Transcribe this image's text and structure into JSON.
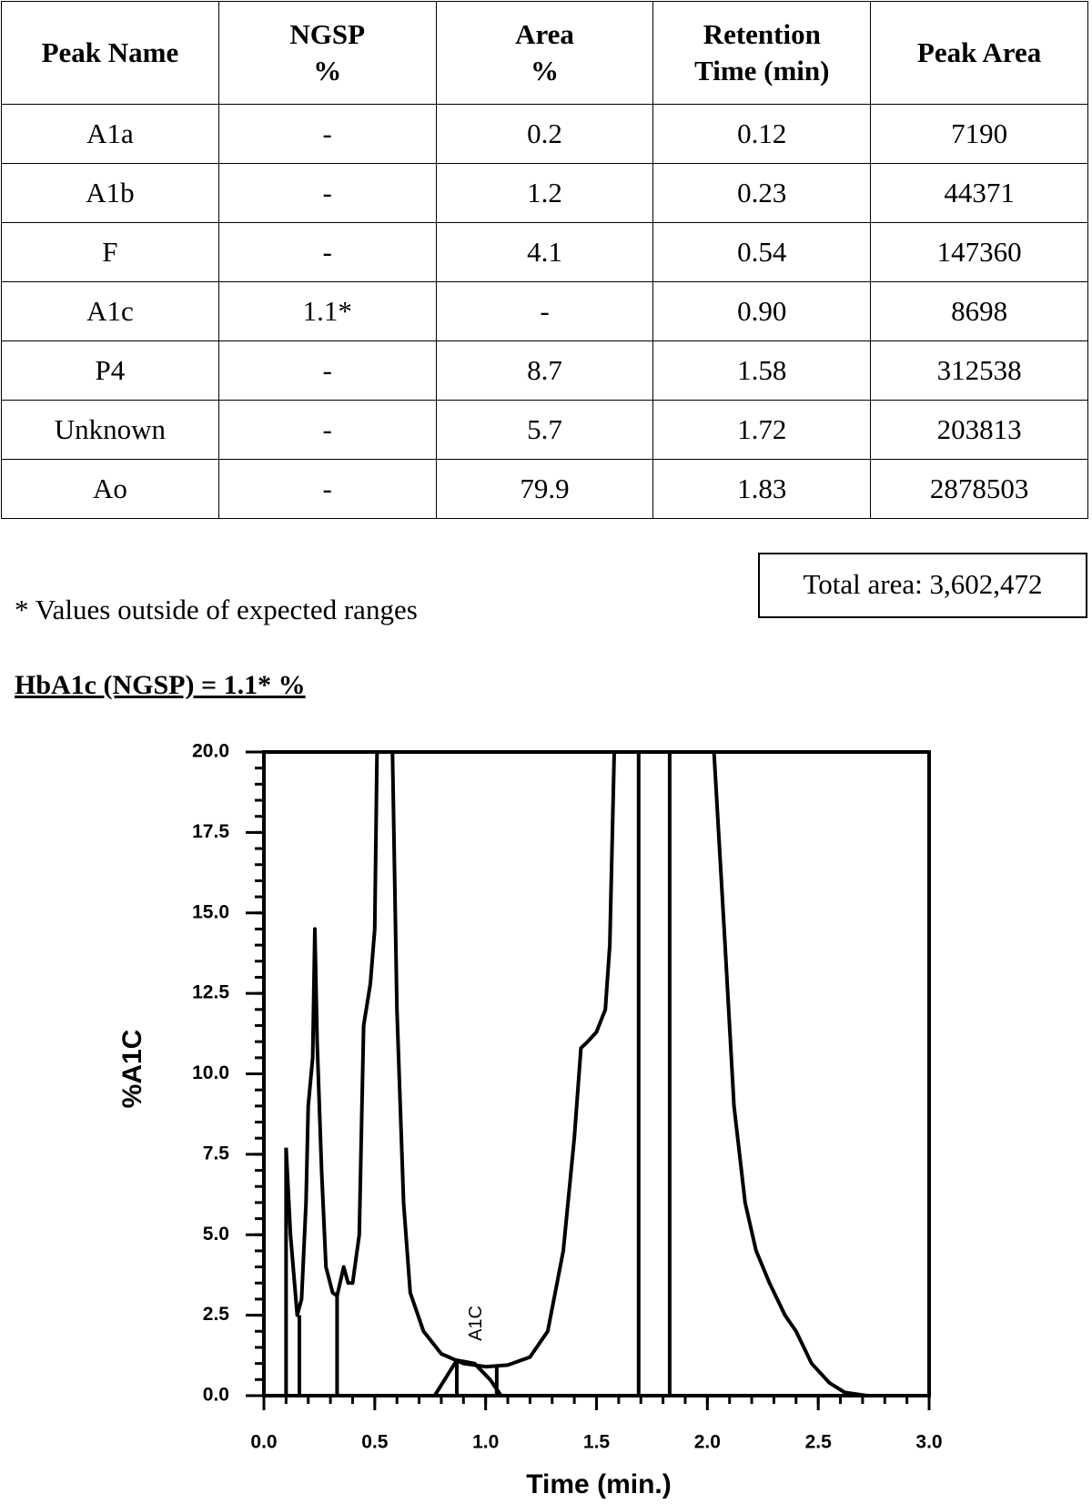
{
  "table": {
    "header": [
      "Peak Name",
      "NGSP\n%",
      "Area\n%",
      "Retention\nTime (min)",
      "Peak Area"
    ],
    "rows": [
      [
        "A1a",
        "-",
        "0.2",
        "0.12",
        "7190"
      ],
      [
        "A1b",
        "-",
        "1.2",
        "0.23",
        "44371"
      ],
      [
        "F",
        "-",
        "4.1",
        "0.54",
        "147360"
      ],
      [
        "A1c",
        "1.1*",
        "-",
        "0.90",
        "8698"
      ],
      [
        "P4",
        "-",
        "8.7",
        "1.58",
        "312538"
      ],
      [
        "Unknown",
        "-",
        "5.7",
        "1.72",
        "203813"
      ],
      [
        "Ao",
        "-",
        "79.9",
        "1.83",
        "2878503"
      ]
    ]
  },
  "total_area": "Total area: 3,602,472",
  "footnote": "* Values outside of expected ranges",
  "result": "HbA1c (NGSP) = 1.1* %",
  "chart_data": {
    "type": "line",
    "xlabel": "Time (min.)",
    "ylabel": "%A1C",
    "xlim": [
      0,
      3
    ],
    "ylim": [
      0,
      20
    ],
    "xticks": [
      {
        "value": 0,
        "label": "0.0"
      },
      0.5,
      {
        "value": 1,
        "label": "1.0"
      },
      1.5,
      {
        "value": 2,
        "label": "2.0"
      },
      2.5,
      {
        "value": 3,
        "label": "3.0"
      }
    ],
    "yticks": [
      {
        "value": 0,
        "label": "0.0"
      },
      2.5,
      {
        "value": 5,
        "label": "5.0"
      },
      7.5,
      {
        "value": 10,
        "label": "10.0"
      },
      12.5,
      {
        "value": 15,
        "label": "15.0"
      },
      17.5,
      {
        "value": 20,
        "label": "20.0"
      }
    ],
    "color": "#000000",
    "series": [
      {
        "x": [
          0.1,
          0.12,
          0.15,
          0.17,
          0.19,
          0.2,
          0.22,
          0.23,
          0.24,
          0.26,
          0.28,
          0.31,
          0.33,
          0.36,
          0.38,
          0.4,
          0.43,
          0.45,
          0.48,
          0.5,
          0.51,
          0.545,
          0.58,
          0.6,
          0.63,
          0.66,
          0.72,
          0.8,
          0.9,
          1.0,
          1.1,
          1.2,
          1.28,
          1.35,
          1.4,
          1.43,
          1.46,
          1.5,
          1.54,
          1.56,
          1.58,
          1.8,
          2.03,
          2.08,
          2.12,
          2.17,
          2.22,
          2.28,
          2.35,
          2.4,
          2.47,
          2.55,
          2.62,
          2.72
        ],
        "values": [
          7.7,
          5.0,
          2.5,
          3.0,
          6,
          9,
          10.5,
          14.5,
          11,
          7,
          4,
          3.2,
          3.1,
          4.0,
          3.5,
          3.5,
          5,
          11.5,
          12.8,
          14.5,
          20,
          null,
          20,
          12,
          6,
          3.2,
          2.0,
          1.3,
          1.0,
          0.9,
          0.95,
          1.2,
          2.0,
          4.5,
          8,
          10.8,
          11.0,
          11.3,
          12,
          14,
          20,
          null,
          20,
          14,
          9,
          6,
          4.5,
          3.5,
          2.5,
          2.0,
          1.0,
          0.4,
          0.1,
          0.0
        ]
      },
      {
        "x": [
          0.77,
          0.87,
          0.95,
          1.02,
          1.07
        ],
        "values": [
          0,
          1.1,
          1.0,
          0.5,
          0
        ]
      }
    ],
    "dividers": {
      "x": [
        0.1,
        0.16,
        0.33,
        0.87,
        1.05,
        1.69,
        1.83
      ],
      "values": [
        7.7,
        2.5,
        3.1,
        1.1,
        0.9,
        20,
        20
      ]
    },
    "annotation": "A1C"
  }
}
